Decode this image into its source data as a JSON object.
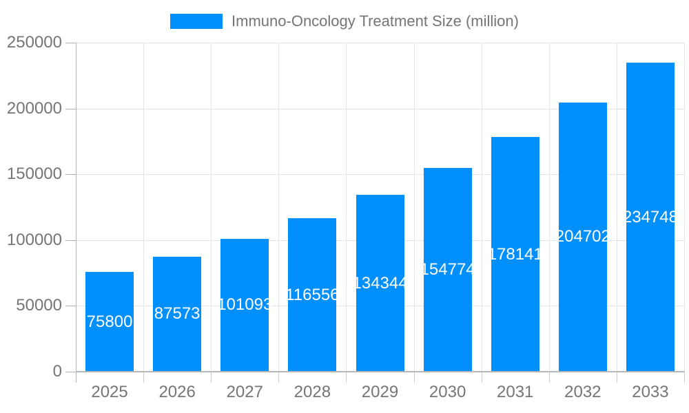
{
  "chart_data": {
    "type": "bar",
    "title": "Immuno-Oncology Treatment Size (million)",
    "legend_position": "top",
    "categories": [
      "2025",
      "2026",
      "2027",
      "2028",
      "2029",
      "2030",
      "2031",
      "2032",
      "2033"
    ],
    "series": [
      {
        "name": "Immuno-Oncology Treatment Size (million)",
        "values": [
          75800,
          87573,
          101093,
          116556,
          134344,
          154774,
          178141,
          204702,
          234748
        ]
      }
    ],
    "data_labels": [
      "75800",
      "87573",
      "101093",
      "116556",
      "134344",
      "154774",
      "178141",
      "204702",
      "234748"
    ],
    "xlabel": "",
    "ylabel": "",
    "ylim": [
      0,
      250000
    ],
    "ytick_step": 50000,
    "yticks": [
      "0",
      "50000",
      "100000",
      "150000",
      "200000",
      "250000"
    ],
    "grid": true,
    "colors": {
      "bar": "#008FFB",
      "bar_label_text": "#ffffff",
      "axis_text": "#757575",
      "gridline": "#e2e2e2",
      "axis_line": "#b6b6b6",
      "background": "#ffffff"
    }
  }
}
